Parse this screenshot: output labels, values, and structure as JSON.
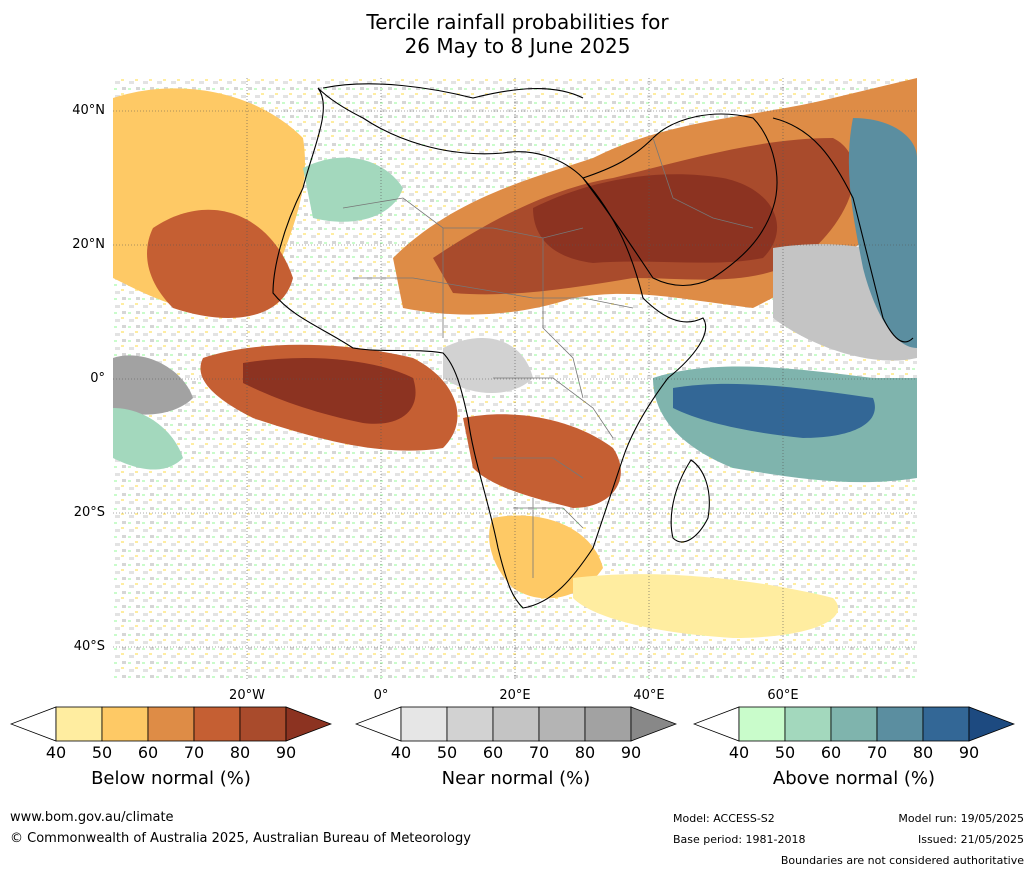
{
  "title": {
    "line1": "Tercile rainfall probabilities for",
    "line2": "26 May to 8 June 2025"
  },
  "map": {
    "lat_labels": [
      "40°N",
      "20°N",
      "0°",
      "20°S",
      "40°S"
    ],
    "lon_labels": [
      "20°W",
      "0°",
      "20°E",
      "40°E",
      "60°E"
    ]
  },
  "colorbars": [
    {
      "id": "below",
      "title": "Below normal (%)",
      "ticks": [
        "40",
        "50",
        "60",
        "70",
        "80",
        "90"
      ],
      "colors": [
        "#ffffff",
        "#ffeda0",
        "#fec965",
        "#de8c46",
        "#c55f33",
        "#a94b2c",
        "#8c3321"
      ]
    },
    {
      "id": "near",
      "title": "Near normal (%)",
      "ticks": [
        "40",
        "50",
        "60",
        "70",
        "80",
        "90"
      ],
      "colors": [
        "#ffffff",
        "#e6e6e6",
        "#d2d2d2",
        "#c4c4c4",
        "#b4b4b4",
        "#a2a2a2",
        "#888888"
      ]
    },
    {
      "id": "above",
      "title": "Above normal (%)",
      "ticks": [
        "40",
        "50",
        "60",
        "70",
        "80",
        "90"
      ],
      "colors": [
        "#ffffff",
        "#c9fccb",
        "#a3d8bd",
        "#7fb4ad",
        "#5b8ea0",
        "#336796",
        "#1d4a80"
      ]
    }
  ],
  "footer": {
    "url": "www.bom.gov.au/climate",
    "copyright": "© Commonwealth of Australia 2025, Australian Bureau of Meteorology",
    "model": "Model: ACCESS-S2",
    "base_period": "Base period: 1981-2018",
    "model_run": "Model run: 19/05/2025",
    "issued": "Issued: 21/05/2025",
    "disclaimer": "Boundaries are not considered authoritative"
  }
}
